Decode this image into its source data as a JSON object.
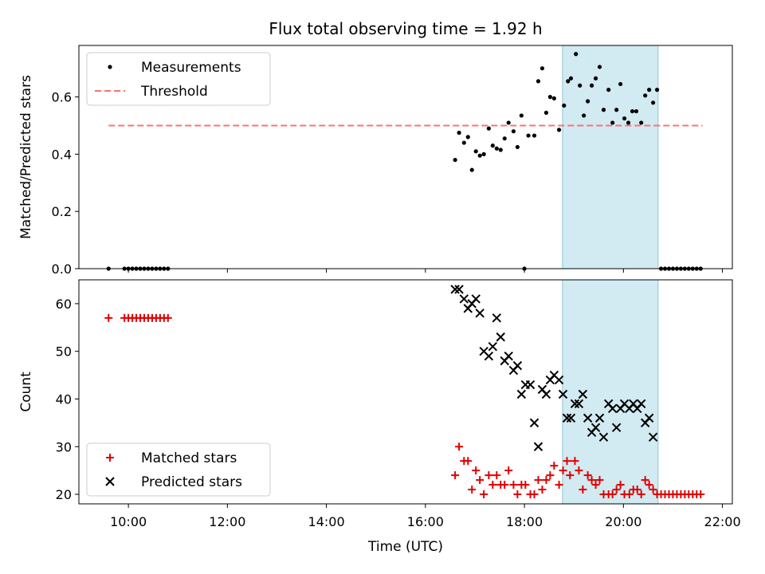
{
  "title": "Flux total observing time = 1.92 h",
  "colors": {
    "measurement": "#000000",
    "threshold": "#ff7070",
    "matched": "#e00000",
    "predicted": "#000000",
    "highlight": "#add8e6"
  },
  "chart_data": [
    {
      "type": "scatter",
      "ylabel": "Matched/Predicted stars",
      "xlabel": "",
      "xlim_hours": [
        9.0,
        22.2
      ],
      "ylim": [
        0.0,
        0.78
      ],
      "yticks": [
        0.0,
        0.2,
        0.4,
        0.6
      ],
      "ytick_labels": [
        "0.0",
        "0.2",
        "0.4",
        "0.6"
      ],
      "highlight_span_hours": [
        18.77,
        20.7
      ],
      "legend_position": "top-left",
      "legend": [
        {
          "label": "Measurements",
          "marker": "dot"
        },
        {
          "label": "Threshold",
          "marker": "dashed-line"
        }
      ],
      "threshold": {
        "value": 0.5,
        "x_range_hours": [
          9.6,
          21.6
        ]
      },
      "series": [
        {
          "name": "Measurements",
          "points": [
            [
              9.6,
              0
            ],
            [
              9.92,
              0
            ],
            [
              10.0,
              0
            ],
            [
              10.08,
              0
            ],
            [
              10.16,
              0
            ],
            [
              10.24,
              0
            ],
            [
              10.32,
              0
            ],
            [
              10.4,
              0
            ],
            [
              10.48,
              0
            ],
            [
              10.56,
              0
            ],
            [
              10.64,
              0
            ],
            [
              10.72,
              0
            ],
            [
              10.8,
              0
            ],
            [
              16.6,
              0.38
            ],
            [
              16.68,
              0.475
            ],
            [
              16.78,
              0.44
            ],
            [
              16.86,
              0.46
            ],
            [
              16.94,
              0.345
            ],
            [
              17.02,
              0.41
            ],
            [
              17.1,
              0.395
            ],
            [
              17.18,
              0.4
            ],
            [
              17.28,
              0.49
            ],
            [
              17.36,
              0.43
            ],
            [
              17.44,
              0.42
            ],
            [
              17.52,
              0.415
            ],
            [
              17.6,
              0.455
            ],
            [
              17.68,
              0.51
            ],
            [
              17.78,
              0.48
            ],
            [
              17.86,
              0.425
            ],
            [
              17.94,
              0.535
            ],
            [
              18.08,
              0.465
            ],
            [
              18.2,
              0.465
            ],
            [
              18.28,
              0.655
            ],
            [
              18.36,
              0.7
            ],
            [
              18.44,
              0.545
            ],
            [
              18.52,
              0.6
            ],
            [
              18.6,
              0.595
            ],
            [
              18.7,
              0.485
            ],
            [
              18.8,
              0.57
            ],
            [
              18.88,
              0.655
            ],
            [
              18.94,
              0.665
            ],
            [
              19.04,
              0.75
            ],
            [
              19.12,
              0.64
            ],
            [
              19.2,
              0.535
            ],
            [
              19.28,
              0.585
            ],
            [
              19.36,
              0.64
            ],
            [
              19.44,
              0.665
            ],
            [
              19.52,
              0.705
            ],
            [
              19.6,
              0.555
            ],
            [
              19.7,
              0.625
            ],
            [
              19.78,
              0.51
            ],
            [
              19.86,
              0.555
            ],
            [
              19.94,
              0.645
            ],
            [
              20.02,
              0.525
            ],
            [
              20.1,
              0.51
            ],
            [
              20.18,
              0.55
            ],
            [
              20.26,
              0.55
            ],
            [
              20.36,
              0.51
            ],
            [
              20.44,
              0.605
            ],
            [
              20.52,
              0.625
            ],
            [
              20.6,
              0.58
            ],
            [
              20.68,
              0.625
            ],
            [
              18.0,
              0
            ],
            [
              20.76,
              0
            ],
            [
              20.84,
              0
            ],
            [
              20.92,
              0
            ],
            [
              21.0,
              0
            ],
            [
              21.08,
              0
            ],
            [
              21.16,
              0
            ],
            [
              21.24,
              0
            ],
            [
              21.32,
              0
            ],
            [
              21.4,
              0
            ],
            [
              21.48,
              0
            ],
            [
              21.56,
              0
            ]
          ]
        }
      ],
      "xticks_hours": [
        10,
        12,
        14,
        16,
        18,
        20,
        22
      ]
    },
    {
      "type": "scatter",
      "ylabel": "Count",
      "xlabel": "Time (UTC)",
      "xlim_hours": [
        9.0,
        22.2
      ],
      "ylim": [
        18,
        65
      ],
      "yticks": [
        20,
        30,
        40,
        50,
        60
      ],
      "ytick_labels": [
        "20",
        "30",
        "40",
        "50",
        "60"
      ],
      "xticks_hours": [
        10,
        12,
        14,
        16,
        18,
        20,
        22
      ],
      "xtick_labels": [
        "10:00",
        "12:00",
        "14:00",
        "16:00",
        "18:00",
        "20:00",
        "22:00"
      ],
      "highlight_span_hours": [
        18.77,
        20.7
      ],
      "legend_position": "bottom-left",
      "legend": [
        {
          "label": "Matched stars",
          "marker": "plus"
        },
        {
          "label": "Predicted stars",
          "marker": "x"
        }
      ],
      "series": [
        {
          "name": "Matched stars",
          "marker": "plus",
          "points": [
            [
              9.6,
              57
            ],
            [
              9.92,
              57
            ],
            [
              10.0,
              57
            ],
            [
              10.08,
              57
            ],
            [
              10.16,
              57
            ],
            [
              10.24,
              57
            ],
            [
              10.32,
              57
            ],
            [
              10.4,
              57
            ],
            [
              10.48,
              57
            ],
            [
              10.56,
              57
            ],
            [
              10.64,
              57
            ],
            [
              10.72,
              57
            ],
            [
              10.8,
              57
            ],
            [
              16.6,
              24
            ],
            [
              16.68,
              30
            ],
            [
              16.78,
              27
            ],
            [
              16.86,
              27
            ],
            [
              16.94,
              21
            ],
            [
              17.02,
              25
            ],
            [
              17.1,
              23
            ],
            [
              17.18,
              20
            ],
            [
              17.28,
              24
            ],
            [
              17.36,
              22
            ],
            [
              17.44,
              24
            ],
            [
              17.52,
              22
            ],
            [
              17.6,
              22
            ],
            [
              17.68,
              25
            ],
            [
              17.78,
              22
            ],
            [
              17.86,
              20
            ],
            [
              17.94,
              22
            ],
            [
              18.02,
              22
            ],
            [
              18.12,
              20
            ],
            [
              18.2,
              20
            ],
            [
              18.28,
              23
            ],
            [
              18.36,
              21
            ],
            [
              18.44,
              23
            ],
            [
              18.52,
              24
            ],
            [
              18.6,
              26
            ],
            [
              18.7,
              22
            ],
            [
              18.78,
              25
            ],
            [
              18.86,
              27
            ],
            [
              18.92,
              24
            ],
            [
              19.02,
              27
            ],
            [
              19.1,
              25
            ],
            [
              19.18,
              21
            ],
            [
              19.28,
              24
            ],
            [
              19.36,
              23
            ],
            [
              19.44,
              22
            ],
            [
              19.52,
              23
            ],
            [
              19.6,
              20
            ],
            [
              19.7,
              20
            ],
            [
              19.78,
              20
            ],
            [
              19.86,
              21
            ],
            [
              19.94,
              22
            ],
            [
              20.02,
              20
            ],
            [
              20.12,
              20
            ],
            [
              20.2,
              21
            ],
            [
              20.28,
              21
            ],
            [
              20.36,
              20
            ],
            [
              20.44,
              23
            ],
            [
              20.52,
              22
            ],
            [
              20.6,
              21
            ],
            [
              20.68,
              20
            ],
            [
              20.76,
              20
            ],
            [
              20.84,
              20
            ],
            [
              20.92,
              20
            ],
            [
              21.0,
              20
            ],
            [
              21.08,
              20
            ],
            [
              21.16,
              20
            ],
            [
              21.24,
              20
            ],
            [
              21.32,
              20
            ],
            [
              21.4,
              20
            ],
            [
              21.48,
              20
            ],
            [
              21.56,
              20
            ]
          ]
        },
        {
          "name": "Predicted stars",
          "marker": "x",
          "points": [
            [
              16.6,
              63
            ],
            [
              16.68,
              63
            ],
            [
              16.78,
              61
            ],
            [
              16.86,
              59
            ],
            [
              16.94,
              60
            ],
            [
              17.02,
              61
            ],
            [
              17.1,
              58
            ],
            [
              17.18,
              50
            ],
            [
              17.28,
              49
            ],
            [
              17.36,
              51
            ],
            [
              17.44,
              57
            ],
            [
              17.52,
              53
            ],
            [
              17.6,
              48
            ],
            [
              17.68,
              49
            ],
            [
              17.78,
              46
            ],
            [
              17.86,
              47
            ],
            [
              17.94,
              41
            ],
            [
              18.02,
              43
            ],
            [
              18.12,
              43
            ],
            [
              18.2,
              35
            ],
            [
              18.28,
              30
            ],
            [
              18.36,
              42
            ],
            [
              18.44,
              41
            ],
            [
              18.52,
              44
            ],
            [
              18.6,
              45
            ],
            [
              18.7,
              44
            ],
            [
              18.78,
              41
            ],
            [
              18.86,
              36
            ],
            [
              18.94,
              36
            ],
            [
              19.02,
              39
            ],
            [
              19.1,
              39
            ],
            [
              19.18,
              41
            ],
            [
              19.28,
              36
            ],
            [
              19.36,
              33
            ],
            [
              19.44,
              34
            ],
            [
              19.52,
              36
            ],
            [
              19.6,
              32
            ],
            [
              19.7,
              39
            ],
            [
              19.78,
              38
            ],
            [
              19.86,
              34
            ],
            [
              19.94,
              38
            ],
            [
              20.02,
              39
            ],
            [
              20.12,
              38
            ],
            [
              20.2,
              39
            ],
            [
              20.28,
              38
            ],
            [
              20.36,
              39
            ],
            [
              20.44,
              35
            ],
            [
              20.52,
              36
            ],
            [
              20.6,
              32
            ]
          ]
        }
      ]
    }
  ]
}
